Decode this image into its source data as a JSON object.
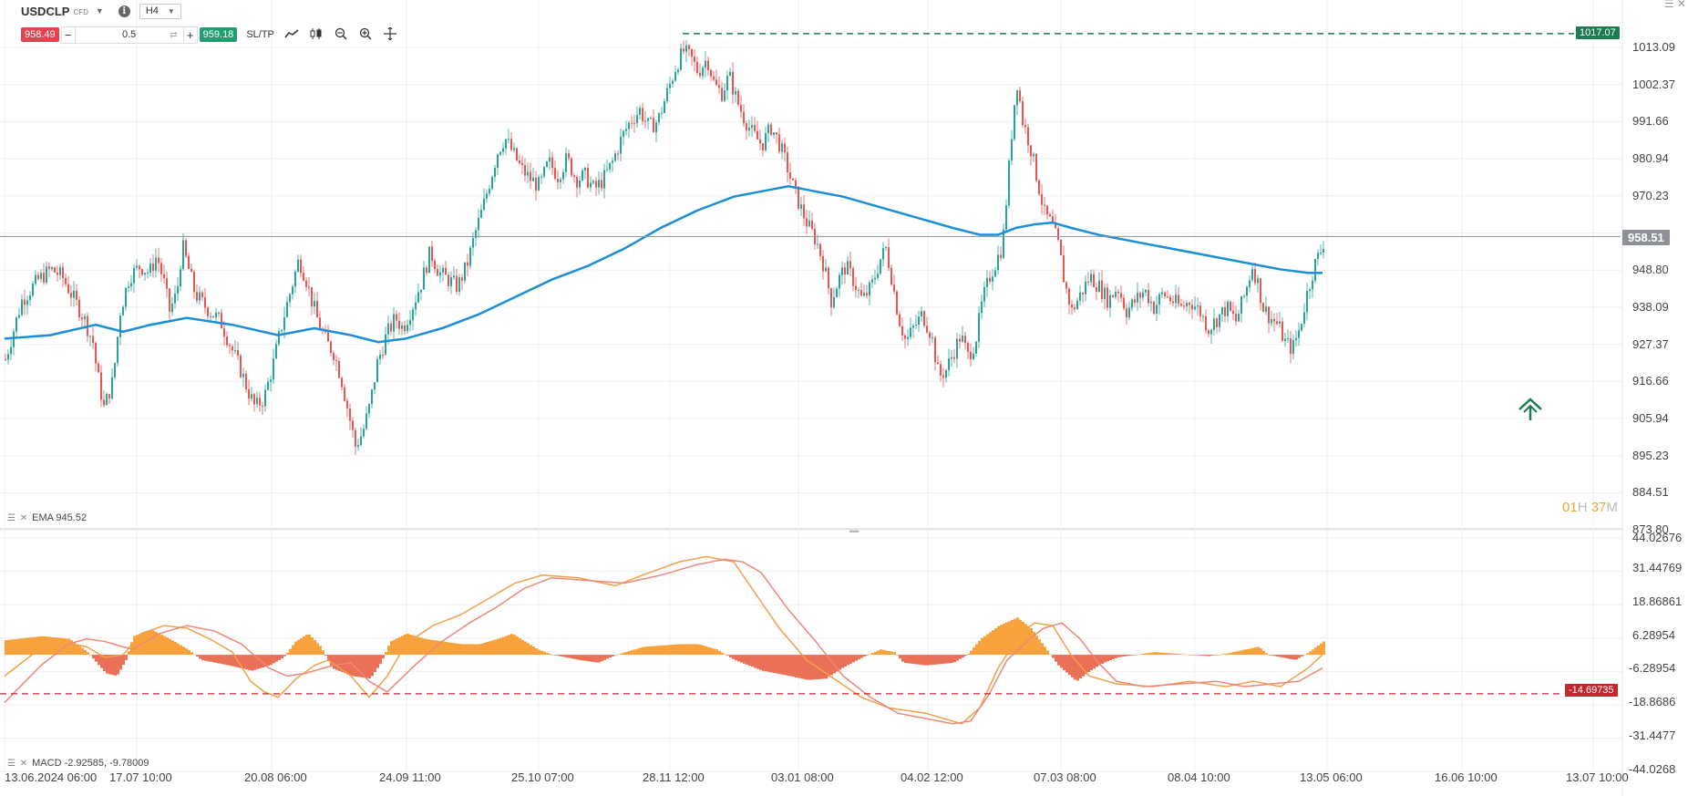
{
  "header": {
    "symbol": "USDCLP",
    "symbol_tag": "CFD",
    "info_icon": "i",
    "timeframe": "H4",
    "sell_price": "958.49",
    "quantity": "0.5",
    "buy_price": "959.18",
    "sltp_label": "SL/TP"
  },
  "tools": [
    "line-chart-icon",
    "candles-icon",
    "zoom-out-icon",
    "zoom-in-icon",
    "crosshair-icon"
  ],
  "indicators": {
    "ema_label": "EMA 945.52",
    "macd_label": "MACD -2.92585, -9.78009"
  },
  "countdown": {
    "hours": "01",
    "h_unit": "H",
    "minutes": "37",
    "m_unit": "M"
  },
  "price_axis": [
    "1013.09",
    "1002.37",
    "991.66",
    "980.94",
    "970.23",
    "958.51",
    "948.80",
    "938.09",
    "927.37",
    "916.66",
    "905.94",
    "895.23",
    "884.51",
    "873.80"
  ],
  "macd_axis": [
    "44.02676",
    "31.44769",
    "18.86861",
    "6.28954",
    "-6.28954",
    "-14.69735",
    "-18.8686",
    "-31.4477",
    "-44.0268"
  ],
  "badges": {
    "high_line": "1017.07",
    "current_price": "958.51",
    "macd_level": "-14.69735"
  },
  "colors": {
    "bull": "#26a69a",
    "bear": "#ef5350",
    "ema": "#1a8fd6",
    "high_line": "#1e7a52",
    "current_badge": "#8e9296",
    "macd_pos": "#f7a23c",
    "macd_neg": "#ea7158",
    "macd_line": "#f3a04a",
    "signal_line": "#ee8777",
    "macd_level": "#c0282e"
  },
  "chart_data": {
    "type": "candlestick",
    "symbol": "USDCLP",
    "timeframe": "H4",
    "ylim": [
      873.8,
      1020.0
    ],
    "x_ticks": [
      "13.06.2024 06:00",
      "17.07 10:00",
      "20.08 06:00",
      "24.09 11:00",
      "25.10 07:00",
      "28.11 12:00",
      "03.01 08:00",
      "04.02 12:00",
      "07.03 08:00",
      "08.04 10:00",
      "13.05 06:00",
      "16.06 10:00",
      "13.07 10:00"
    ],
    "close_path": [
      [
        0,
        923
      ],
      [
        18,
        940
      ],
      [
        36,
        946
      ],
      [
        50,
        949
      ],
      [
        62,
        947
      ],
      [
        74,
        941
      ],
      [
        86,
        935
      ],
      [
        96,
        928
      ],
      [
        100,
        920
      ],
      [
        108,
        909
      ],
      [
        118,
        917
      ],
      [
        126,
        937
      ],
      [
        136,
        947
      ],
      [
        148,
        950
      ],
      [
        158,
        948
      ],
      [
        166,
        953
      ],
      [
        174,
        945
      ],
      [
        180,
        937
      ],
      [
        188,
        942
      ],
      [
        194,
        956
      ],
      [
        200,
        950
      ],
      [
        208,
        942
      ],
      [
        220,
        938
      ],
      [
        236,
        934
      ],
      [
        250,
        925
      ],
      [
        258,
        920
      ],
      [
        266,
        914
      ],
      [
        274,
        909
      ],
      [
        284,
        912
      ],
      [
        294,
        922
      ],
      [
        304,
        934
      ],
      [
        314,
        944
      ],
      [
        322,
        952
      ],
      [
        330,
        946
      ],
      [
        336,
        940
      ],
      [
        344,
        933
      ],
      [
        352,
        928
      ],
      [
        360,
        925
      ],
      [
        368,
        918
      ],
      [
        376,
        908
      ],
      [
        384,
        898
      ],
      [
        392,
        902
      ],
      [
        400,
        910
      ],
      [
        408,
        922
      ],
      [
        418,
        930
      ],
      [
        428,
        935
      ],
      [
        436,
        932
      ],
      [
        446,
        938
      ],
      [
        456,
        945
      ],
      [
        466,
        954
      ],
      [
        476,
        948
      ],
      [
        486,
        946
      ],
      [
        496,
        944
      ],
      [
        506,
        950
      ],
      [
        516,
        960
      ],
      [
        524,
        967
      ],
      [
        532,
        975
      ],
      [
        540,
        983
      ],
      [
        548,
        987
      ],
      [
        558,
        982
      ],
      [
        566,
        978
      ],
      [
        576,
        975
      ],
      [
        586,
        973
      ],
      [
        596,
        980
      ],
      [
        606,
        976
      ],
      [
        616,
        981
      ],
      [
        626,
        975
      ],
      [
        636,
        976
      ],
      [
        646,
        972
      ],
      [
        656,
        975
      ],
      [
        666,
        980
      ],
      [
        676,
        987
      ],
      [
        686,
        992
      ],
      [
        696,
        995
      ],
      [
        706,
        990
      ],
      [
        716,
        992
      ],
      [
        726,
        1000
      ],
      [
        736,
        1008
      ],
      [
        744,
        1012
      ],
      [
        752,
        1010
      ],
      [
        760,
        1006
      ],
      [
        770,
        1010
      ],
      [
        778,
        1002
      ],
      [
        786,
        1000
      ],
      [
        794,
        1005
      ],
      [
        802,
        998
      ],
      [
        810,
        993
      ],
      [
        820,
        988
      ],
      [
        830,
        985
      ],
      [
        840,
        990
      ],
      [
        848,
        986
      ],
      [
        856,
        980
      ],
      [
        864,
        973
      ],
      [
        872,
        967
      ],
      [
        880,
        962
      ],
      [
        890,
        957
      ],
      [
        898,
        950
      ],
      [
        906,
        940
      ],
      [
        914,
        946
      ],
      [
        922,
        950
      ],
      [
        930,
        946
      ],
      [
        940,
        940
      ],
      [
        950,
        944
      ],
      [
        960,
        952
      ],
      [
        966,
        955
      ],
      [
        972,
        947
      ],
      [
        980,
        935
      ],
      [
        988,
        928
      ],
      [
        996,
        932
      ],
      [
        1006,
        936
      ],
      [
        1016,
        930
      ],
      [
        1024,
        918
      ],
      [
        1032,
        920
      ],
      [
        1040,
        925
      ],
      [
        1048,
        930
      ],
      [
        1056,
        924
      ],
      [
        1064,
        928
      ],
      [
        1072,
        940
      ],
      [
        1080,
        947
      ],
      [
        1088,
        952
      ],
      [
        1094,
        956
      ],
      [
        1100,
        975
      ],
      [
        1106,
        995
      ],
      [
        1110,
        1003
      ],
      [
        1116,
        992
      ],
      [
        1124,
        985
      ],
      [
        1132,
        975
      ],
      [
        1140,
        965
      ],
      [
        1148,
        962
      ],
      [
        1156,
        955
      ],
      [
        1162,
        945
      ],
      [
        1170,
        937
      ],
      [
        1180,
        942
      ],
      [
        1190,
        947
      ],
      [
        1200,
        944
      ],
      [
        1210,
        940
      ],
      [
        1220,
        944
      ],
      [
        1230,
        937
      ],
      [
        1240,
        940
      ],
      [
        1250,
        943
      ],
      [
        1260,
        938
      ],
      [
        1270,
        942
      ],
      [
        1280,
        940
      ],
      [
        1290,
        938
      ],
      [
        1300,
        940
      ],
      [
        1310,
        937
      ],
      [
        1320,
        932
      ],
      [
        1330,
        935
      ],
      [
        1340,
        938
      ],
      [
        1350,
        934
      ],
      [
        1360,
        942
      ],
      [
        1368,
        950
      ],
      [
        1374,
        945
      ],
      [
        1380,
        938
      ],
      [
        1388,
        935
      ],
      [
        1396,
        933
      ],
      [
        1404,
        928
      ],
      [
        1412,
        926
      ],
      [
        1420,
        932
      ],
      [
        1428,
        942
      ],
      [
        1436,
        950
      ],
      [
        1444,
        955
      ],
      [
        1448,
        958.5
      ]
    ],
    "ema_path": [
      [
        0,
        929
      ],
      [
        50,
        930
      ],
      [
        100,
        933
      ],
      [
        130,
        931
      ],
      [
        160,
        933
      ],
      [
        200,
        935
      ],
      [
        250,
        933
      ],
      [
        300,
        930
      ],
      [
        340,
        932
      ],
      [
        380,
        930
      ],
      [
        410,
        928
      ],
      [
        440,
        929
      ],
      [
        480,
        932
      ],
      [
        520,
        936
      ],
      [
        560,
        941
      ],
      [
        600,
        946
      ],
      [
        640,
        950
      ],
      [
        680,
        955
      ],
      [
        720,
        961
      ],
      [
        760,
        966
      ],
      [
        800,
        970
      ],
      [
        840,
        972
      ],
      [
        860,
        973
      ],
      [
        880,
        972
      ],
      [
        920,
        970
      ],
      [
        960,
        967
      ],
      [
        1000,
        964
      ],
      [
        1040,
        961
      ],
      [
        1070,
        959
      ],
      [
        1090,
        959
      ],
      [
        1110,
        961
      ],
      [
        1130,
        962
      ],
      [
        1150,
        962.5
      ],
      [
        1170,
        961
      ],
      [
        1200,
        959
      ],
      [
        1240,
        957
      ],
      [
        1280,
        955
      ],
      [
        1320,
        953
      ],
      [
        1360,
        951
      ],
      [
        1400,
        949
      ],
      [
        1430,
        948
      ],
      [
        1446,
        948
      ]
    ],
    "high_line": {
      "value": 1017.07,
      "x_start": 744
    },
    "current_price": 958.51,
    "macd": {
      "ylim": [
        -44.0268,
        44.02676
      ],
      "level": -14.69735,
      "histogram_path": [
        [
          0,
          5.5
        ],
        [
          40,
          7
        ],
        [
          70,
          6
        ],
        [
          90,
          1
        ],
        [
          110,
          -7
        ],
        [
          122,
          -8
        ],
        [
          132,
          -2
        ],
        [
          140,
          7
        ],
        [
          160,
          9.5
        ],
        [
          180,
          6
        ],
        [
          200,
          2
        ],
        [
          215,
          -2
        ],
        [
          245,
          -4
        ],
        [
          270,
          -6
        ],
        [
          290,
          -4
        ],
        [
          305,
          -1
        ],
        [
          318,
          5
        ],
        [
          332,
          8
        ],
        [
          346,
          3
        ],
        [
          358,
          -5
        ],
        [
          380,
          -8
        ],
        [
          400,
          -9
        ],
        [
          412,
          -3
        ],
        [
          422,
          5
        ],
        [
          440,
          8
        ],
        [
          460,
          6
        ],
        [
          480,
          5
        ],
        [
          500,
          4
        ],
        [
          520,
          4
        ],
        [
          540,
          6
        ],
        [
          556,
          8
        ],
        [
          570,
          5
        ],
        [
          584,
          2
        ],
        [
          600,
          0
        ],
        [
          630,
          -2
        ],
        [
          650,
          -3
        ],
        [
          670,
          0
        ],
        [
          700,
          3
        ],
        [
          740,
          4
        ],
        [
          760,
          4
        ],
        [
          780,
          2
        ],
        [
          800,
          -2
        ],
        [
          830,
          -6
        ],
        [
          860,
          -8
        ],
        [
          880,
          -9.5
        ],
        [
          900,
          -9
        ],
        [
          918,
          -5
        ],
        [
          940,
          -1
        ],
        [
          960,
          2
        ],
        [
          975,
          1
        ],
        [
          985,
          -3
        ],
        [
          1010,
          -4
        ],
        [
          1040,
          -3
        ],
        [
          1055,
          0
        ],
        [
          1070,
          6
        ],
        [
          1090,
          11
        ],
        [
          1110,
          14
        ],
        [
          1125,
          10
        ],
        [
          1140,
          3
        ],
        [
          1155,
          -4
        ],
        [
          1175,
          -10
        ],
        [
          1190,
          -6
        ],
        [
          1205,
          -3
        ],
        [
          1220,
          -1
        ],
        [
          1240,
          0
        ],
        [
          1260,
          1
        ],
        [
          1280,
          0.5
        ],
        [
          1300,
          0
        ],
        [
          1320,
          -0.5
        ],
        [
          1340,
          0.5
        ],
        [
          1360,
          2
        ],
        [
          1375,
          3
        ],
        [
          1385,
          0
        ],
        [
          1400,
          -1
        ],
        [
          1415,
          -2
        ],
        [
          1430,
          1
        ],
        [
          1446,
          5
        ]
      ],
      "macd_path": [
        [
          0,
          -8
        ],
        [
          30,
          0
        ],
        [
          60,
          5
        ],
        [
          90,
          3
        ],
        [
          110,
          -1
        ],
        [
          130,
          0
        ],
        [
          150,
          8
        ],
        [
          175,
          11
        ],
        [
          200,
          10
        ],
        [
          225,
          6
        ],
        [
          250,
          1
        ],
        [
          270,
          -10
        ],
        [
          285,
          -14
        ],
        [
          300,
          -16
        ],
        [
          320,
          -9
        ],
        [
          340,
          -4
        ],
        [
          355,
          -2
        ],
        [
          380,
          -8
        ],
        [
          400,
          -16
        ],
        [
          420,
          -8
        ],
        [
          440,
          4
        ],
        [
          470,
          11
        ],
        [
          500,
          15
        ],
        [
          530,
          21
        ],
        [
          560,
          27
        ],
        [
          590,
          30
        ],
        [
          630,
          29
        ],
        [
          670,
          26
        ],
        [
          700,
          30
        ],
        [
          740,
          35
        ],
        [
          770,
          37
        ],
        [
          800,
          35
        ],
        [
          820,
          25
        ],
        [
          850,
          10
        ],
        [
          880,
          -2
        ],
        [
          910,
          -9
        ],
        [
          940,
          -16
        ],
        [
          970,
          -20
        ],
        [
          1010,
          -22
        ],
        [
          1050,
          -26
        ],
        [
          1070,
          -20
        ],
        [
          1090,
          -5
        ],
        [
          1115,
          8
        ],
        [
          1130,
          12
        ],
        [
          1150,
          11
        ],
        [
          1170,
          0
        ],
        [
          1190,
          -8
        ],
        [
          1220,
          -11
        ],
        [
          1260,
          -12
        ],
        [
          1300,
          -10
        ],
        [
          1340,
          -12
        ],
        [
          1370,
          -10
        ],
        [
          1400,
          -12
        ],
        [
          1430,
          -5
        ],
        [
          1446,
          0
        ]
      ],
      "signal_path": [
        [
          0,
          -18
        ],
        [
          40,
          -4
        ],
        [
          70,
          4
        ],
        [
          90,
          6
        ],
        [
          110,
          5
        ],
        [
          140,
          2
        ],
        [
          170,
          8
        ],
        [
          200,
          11
        ],
        [
          230,
          9
        ],
        [
          260,
          4
        ],
        [
          290,
          -5
        ],
        [
          310,
          -8
        ],
        [
          330,
          -7
        ],
        [
          360,
          -4
        ],
        [
          380,
          -3
        ],
        [
          400,
          -10
        ],
        [
          420,
          -14
        ],
        [
          450,
          -4
        ],
        [
          480,
          5
        ],
        [
          510,
          12
        ],
        [
          540,
          18
        ],
        [
          570,
          25
        ],
        [
          600,
          29
        ],
        [
          640,
          28
        ],
        [
          680,
          27
        ],
        [
          720,
          30
        ],
        [
          760,
          34
        ],
        [
          790,
          36
        ],
        [
          810,
          35
        ],
        [
          830,
          31
        ],
        [
          860,
          17
        ],
        [
          890,
          5
        ],
        [
          920,
          -8
        ],
        [
          950,
          -16
        ],
        [
          980,
          -22
        ],
        [
          1010,
          -24
        ],
        [
          1040,
          -26
        ],
        [
          1060,
          -25
        ],
        [
          1080,
          -15
        ],
        [
          1100,
          -2
        ],
        [
          1125,
          6
        ],
        [
          1140,
          10
        ],
        [
          1160,
          12
        ],
        [
          1180,
          6
        ],
        [
          1200,
          -3
        ],
        [
          1220,
          -10
        ],
        [
          1250,
          -12
        ],
        [
          1290,
          -11
        ],
        [
          1330,
          -10
        ],
        [
          1360,
          -12
        ],
        [
          1390,
          -11
        ],
        [
          1420,
          -10
        ],
        [
          1446,
          -5
        ]
      ]
    }
  }
}
